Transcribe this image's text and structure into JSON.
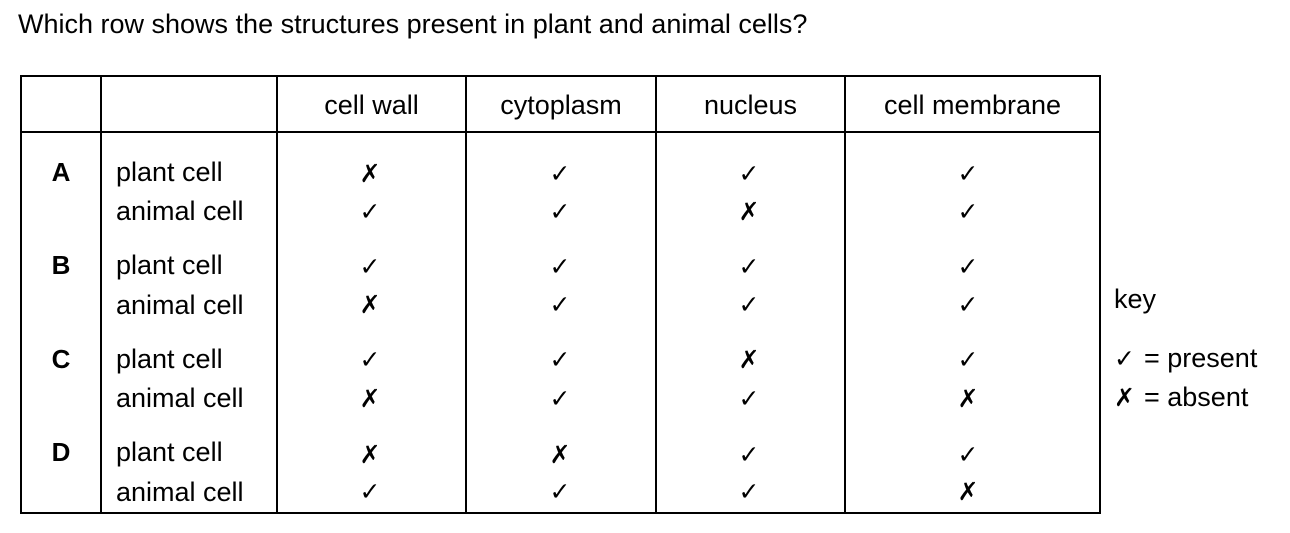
{
  "question": "Which row shows the structures present in plant and animal cells?",
  "columns": [
    "cell wall",
    "cytoplasm",
    "nucleus",
    "cell membrane"
  ],
  "symbols": {
    "present": "✓",
    "absent": "✗"
  },
  "rows": [
    {
      "letter": "A",
      "plant_label": "plant cell",
      "plant": [
        "✗",
        "✓",
        "✓",
        "✓"
      ],
      "animal_label": "animal cell",
      "animal": [
        "✓",
        "✓",
        "✗",
        "✓"
      ]
    },
    {
      "letter": "B",
      "plant_label": "plant cell",
      "plant": [
        "✓",
        "✓",
        "✓",
        "✓"
      ],
      "animal_label": "animal cell",
      "animal": [
        "✗",
        "✓",
        "✓",
        "✓"
      ]
    },
    {
      "letter": "C",
      "plant_label": "plant cell",
      "plant": [
        "✓",
        "✓",
        "✗",
        "✓"
      ],
      "animal_label": "animal cell",
      "animal": [
        "✗",
        "✓",
        "✓",
        "✗"
      ]
    },
    {
      "letter": "D",
      "plant_label": "plant cell",
      "plant": [
        "✗",
        "✗",
        "✓",
        "✓"
      ],
      "animal_label": "animal cell",
      "animal": [
        "✓",
        "✓",
        "✓",
        "✗"
      ]
    }
  ],
  "key": {
    "title": "key",
    "present_symbol": "✓",
    "present_text": "= present",
    "absent_symbol": "✗",
    "absent_text": "= absent"
  }
}
